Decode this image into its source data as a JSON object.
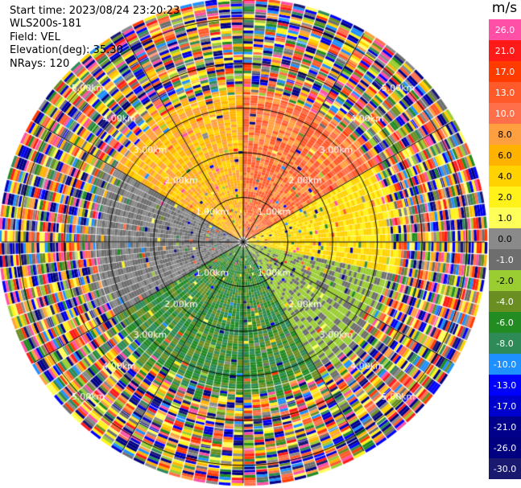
{
  "header": {
    "start_time": "Start time: 2023/08/24 23:20:23",
    "instrument": "WLS200s-181",
    "field": "Field: VEL",
    "elevation": "Elevation(deg): 35.30",
    "nrays": "NRays: 120"
  },
  "colorbar": {
    "unit": "m/s",
    "bins": [
      {
        "label": "26.0",
        "color": "#ff4fa6"
      },
      {
        "label": "21.0",
        "color": "#ff1a1a"
      },
      {
        "label": "17.0",
        "color": "#ff3b00"
      },
      {
        "label": "13.0",
        "color": "#ff5a2a"
      },
      {
        "label": "10.0",
        "color": "#ff704a"
      },
      {
        "label": "8.0",
        "color": "#ffa040"
      },
      {
        "label": "6.0",
        "color": "#ffb200"
      },
      {
        "label": "4.0",
        "color": "#ffd200"
      },
      {
        "label": "2.0",
        "color": "#fff21a"
      },
      {
        "label": "1.0",
        "color": "#ffff5a"
      },
      {
        "label": "0.0",
        "color": "#8a8a8a"
      },
      {
        "label": "-1.0",
        "color": "#6e6e6e"
      },
      {
        "label": "-2.0",
        "color": "#9acd32"
      },
      {
        "label": "-4.0",
        "color": "#6b8e23"
      },
      {
        "label": "-6.0",
        "color": "#228b22"
      },
      {
        "label": "-8.0",
        "color": "#2e8b57"
      },
      {
        "label": "-10.0",
        "color": "#1e90ff"
      },
      {
        "label": "-13.0",
        "color": "#0000ff"
      },
      {
        "label": "-17.0",
        "color": "#0000cd"
      },
      {
        "label": "-21.0",
        "color": "#00008b"
      },
      {
        "label": "-26.0",
        "color": "#000080"
      },
      {
        "label": "-30.0",
        "color": "#191970"
      }
    ]
  },
  "chart_data": {
    "type": "heatmap",
    "projection": "polar PPI (plan position indicator)",
    "field": "VEL",
    "units": "m/s",
    "nrays": 120,
    "elevation_deg": 35.3,
    "range_rings_km": [
      1.0,
      2.0,
      3.0,
      4.0,
      5.0
    ],
    "range_ring_labels": [
      "1.00km",
      "2.00km",
      "3.00km",
      "4.00km",
      "5.00km"
    ],
    "spoke_azimuths_deg": [
      0,
      30,
      60,
      90,
      120,
      150,
      180,
      210,
      240,
      270,
      300,
      330
    ],
    "max_range_km": 5.4,
    "sectors": [
      {
        "azimuth_deg": [
          300,
          360
        ],
        "range_km": [
          0.3,
          3.2
        ],
        "velocity_ms": [
          2,
          8
        ],
        "description": "north-west warm (approaching)"
      },
      {
        "azimuth_deg": [
          0,
          60
        ],
        "range_km": [
          0.3,
          3.2
        ],
        "velocity_ms": [
          6,
          13
        ],
        "description": "north-east orange/red"
      },
      {
        "azimuth_deg": [
          60,
          100
        ],
        "range_km": [
          0.3,
          3.5
        ],
        "velocity_ms": [
          1,
          4
        ],
        "description": "east yellow"
      },
      {
        "azimuth_deg": [
          100,
          150
        ],
        "range_km": [
          0.3,
          3.0
        ],
        "velocity_ms": [
          -4,
          -1
        ],
        "description": "south-east olive/gray"
      },
      {
        "azimuth_deg": [
          150,
          240
        ],
        "range_km": [
          0.3,
          3.8
        ],
        "velocity_ms": [
          -10,
          -4
        ],
        "description": "south green/teal (receding)"
      },
      {
        "azimuth_deg": [
          240,
          300
        ],
        "range_km": [
          0.3,
          3.2
        ],
        "velocity_ms": [
          -2,
          0
        ],
        "description": "west gray/olive"
      }
    ],
    "noise_range_km": [
      3.2,
      5.4
    ]
  }
}
